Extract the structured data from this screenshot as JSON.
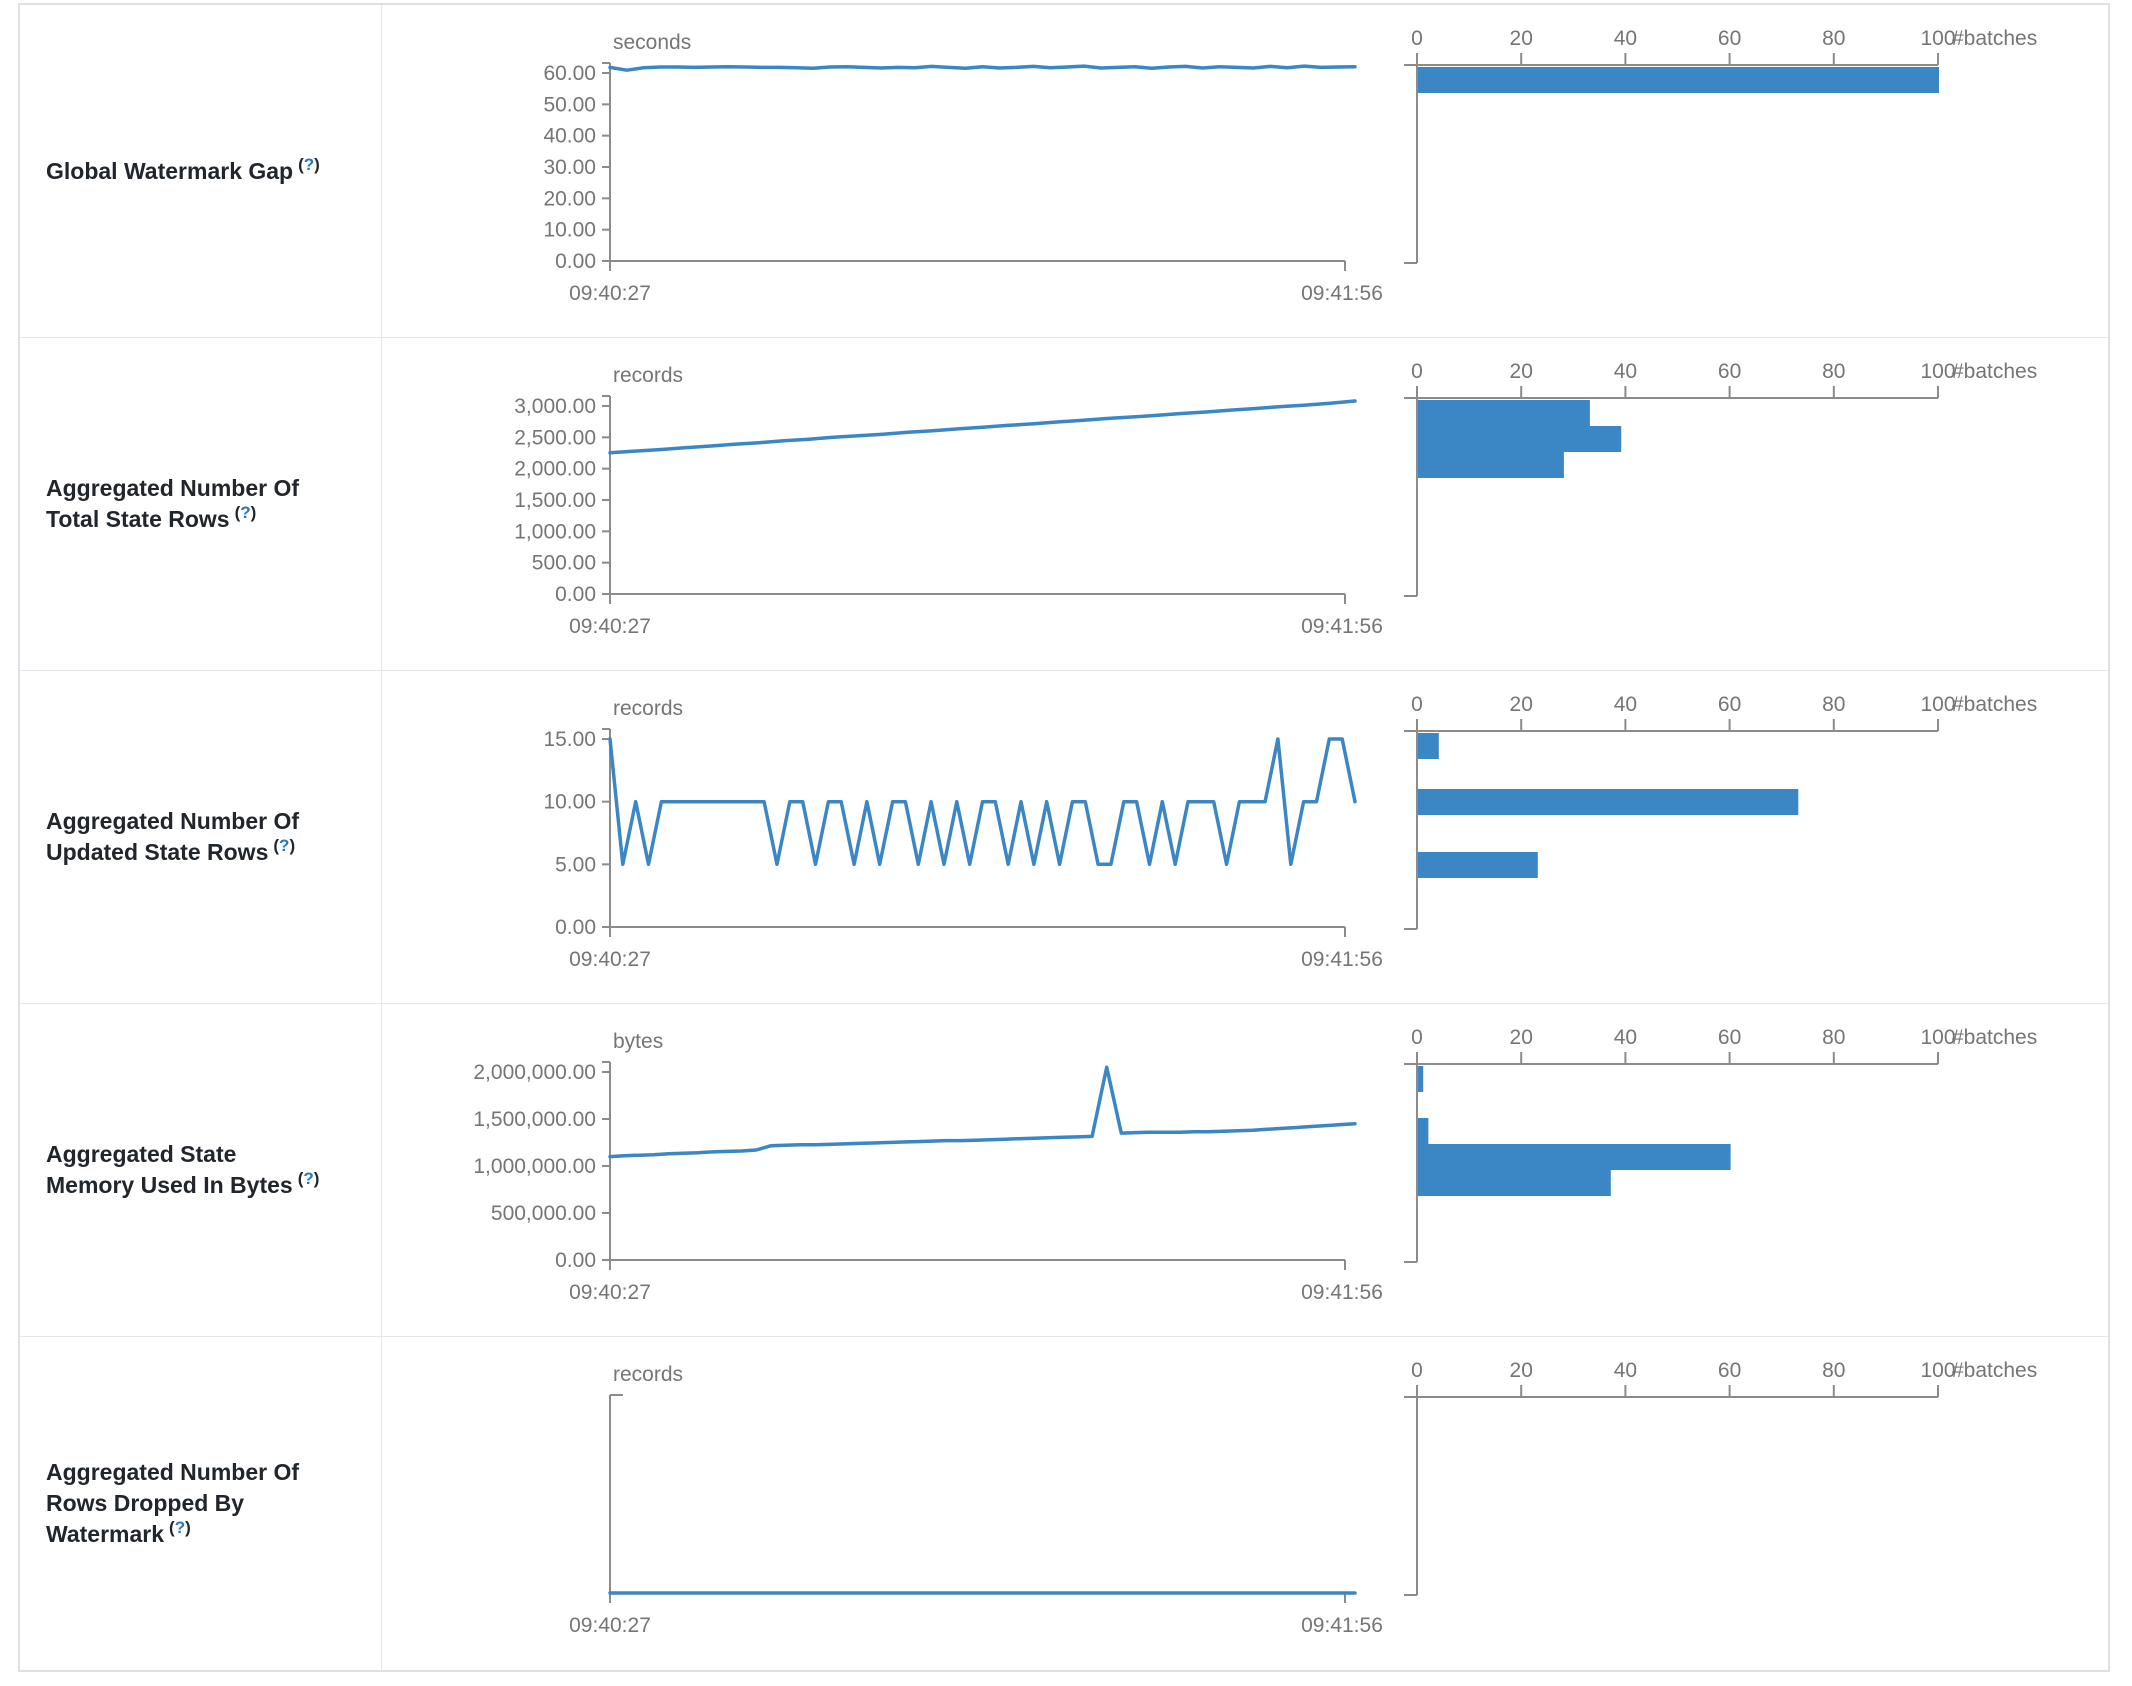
{
  "help": {
    "open": "(",
    "q": "?",
    "close": ")"
  },
  "x_axis": {
    "start": "09:40:27",
    "end": "09:41:56"
  },
  "hist_axis": {
    "ticks": [
      "0",
      "20",
      "40",
      "60",
      "80",
      "100"
    ],
    "label": "#batches"
  },
  "colors": {
    "blue": "#3b86c5",
    "axis": "#8b8b8b",
    "tick_text": "#757575",
    "border": "#dde1e6",
    "help_blue": "#2878b8",
    "label_text": "#21262c"
  },
  "chart_data": [
    {
      "type": "line",
      "title": "Global Watermark Gap",
      "ylabel": "seconds",
      "x_range": [
        "09:40:27",
        "09:41:56"
      ],
      "ylim": [
        0,
        60
      ],
      "hist_x_range": [
        0,
        100
      ],
      "hist": [
        {
          "bucket": "~60s",
          "batches": 100
        }
      ]
    },
    {
      "type": "line",
      "title": "Aggregated Number Of Total State Rows",
      "ylabel": "records",
      "x_range": [
        "09:40:27",
        "09:41:56"
      ],
      "ylim": [
        0,
        3000
      ],
      "hist_x_range": [
        0,
        100
      ],
      "hist": [
        {
          "bucket": "high",
          "batches": 33
        },
        {
          "bucket": "mid",
          "batches": 39
        },
        {
          "bucket": "low",
          "batches": 28
        }
      ]
    },
    {
      "type": "line",
      "title": "Aggregated Number Of Updated State Rows",
      "ylabel": "records",
      "x_range": [
        "09:40:27",
        "09:41:56"
      ],
      "ylim": [
        0,
        15
      ],
      "hist_x_range": [
        0,
        100
      ],
      "hist": [
        {
          "bucket": "15",
          "batches": 4
        },
        {
          "bucket": "10",
          "batches": 73
        },
        {
          "bucket": "5",
          "batches": 23
        }
      ]
    },
    {
      "type": "line",
      "title": "Aggregated State Memory Used In Bytes",
      "ylabel": "bytes",
      "x_range": [
        "09:40:27",
        "09:41:56"
      ],
      "ylim": [
        0,
        2000000
      ],
      "hist_x_range": [
        0,
        100
      ],
      "hist": [
        {
          "bucket": "2.0M",
          "batches": 1
        },
        {
          "bucket": "1.6M",
          "batches": 2
        },
        {
          "bucket": "1.4M",
          "batches": 60
        },
        {
          "bucket": "1.2M",
          "batches": 37
        }
      ]
    },
    {
      "type": "line",
      "title": "Aggregated Number Of Rows Dropped By Watermark",
      "ylabel": "records",
      "x_range": [
        "09:40:27",
        "09:41:56"
      ],
      "ylim": [
        0,
        0
      ],
      "hist_x_range": [
        0,
        100
      ],
      "hist": []
    }
  ],
  "rows": [
    {
      "label": "Global Watermark Gap",
      "unit": "seconds",
      "ymax_tick": 60,
      "yticks": [
        {
          "v": 60,
          "t": "60.00"
        },
        {
          "v": 50,
          "t": "50.00"
        },
        {
          "v": 40,
          "t": "40.00"
        },
        {
          "v": 30,
          "t": "30.00"
        },
        {
          "v": 20,
          "t": "20.00"
        },
        {
          "v": 10,
          "t": "10.00"
        },
        {
          "v": 0,
          "t": "0.00"
        }
      ],
      "values": [
        61.8,
        60.9,
        61.7,
        61.9,
        61.9,
        61.8,
        61.9,
        62.0,
        61.9,
        61.8,
        61.8,
        61.7,
        61.5,
        61.9,
        62.0,
        61.8,
        61.6,
        61.8,
        61.7,
        62.1,
        61.8,
        61.5,
        62.0,
        61.6,
        61.8,
        62.1,
        61.7,
        61.9,
        62.2,
        61.6,
        61.8,
        62.0,
        61.5,
        61.9,
        62.1,
        61.6,
        62.0,
        61.8,
        61.6,
        62.1,
        61.7,
        62.2,
        61.8,
        61.9,
        62.0
      ],
      "bars": [
        {
          "value": 100,
          "y": 62
        }
      ]
    },
    {
      "label": "Aggregated Number Of Total State Rows",
      "unit": "records",
      "ymax_tick": 3000,
      "yticks": [
        {
          "v": 3000,
          "t": "3,000.00"
        },
        {
          "v": 2500,
          "t": "2,500.00"
        },
        {
          "v": 2000,
          "t": "2,000.00"
        },
        {
          "v": 1500,
          "t": "1,500.00"
        },
        {
          "v": 1000,
          "t": "1,000.00"
        },
        {
          "v": 500,
          "t": "500.00"
        },
        {
          "v": 0,
          "t": "0.00"
        }
      ],
      "values": [
        2255,
        2280,
        2305,
        2335,
        2360,
        2390,
        2415,
        2445,
        2470,
        2500,
        2525,
        2550,
        2580,
        2605,
        2635,
        2660,
        2690,
        2715,
        2745,
        2770,
        2800,
        2825,
        2850,
        2880,
        2905,
        2935,
        2960,
        2990,
        3015,
        3045,
        3080
      ],
      "bars": [
        {
          "value": 33,
          "y": 62
        },
        {
          "value": 39,
          "y": 88
        },
        {
          "value": 28,
          "y": 114
        }
      ]
    },
    {
      "label": "Aggregated Number Of Updated State Rows",
      "unit": "records",
      "ymax_tick": 15,
      "yticks": [
        {
          "v": 15,
          "t": "15.00"
        },
        {
          "v": 10,
          "t": "10.00"
        },
        {
          "v": 5,
          "t": "5.00"
        },
        {
          "v": 0,
          "t": "0.00"
        }
      ],
      "values": [
        15,
        5,
        10,
        5,
        10,
        10,
        10,
        10,
        10,
        10,
        10,
        10,
        10,
        5,
        10,
        10,
        5,
        10,
        10,
        5,
        10,
        5,
        10,
        10,
        5,
        10,
        5,
        10,
        5,
        10,
        10,
        5,
        10,
        5,
        10,
        5,
        10,
        10,
        5,
        5,
        10,
        10,
        5,
        10,
        5,
        10,
        10,
        10,
        5,
        10,
        10,
        10,
        15,
        5,
        10,
        10,
        15,
        15,
        10
      ],
      "bars": [
        {
          "value": 4,
          "y": 62
        },
        {
          "value": 73,
          "y": 118
        },
        {
          "value": 23,
          "y": 181
        }
      ]
    },
    {
      "label": "Aggregated State Memory Used In Bytes",
      "unit": "bytes",
      "ymax_tick": 2000000,
      "yticks": [
        {
          "v": 2000000,
          "t": "2,000,000.00"
        },
        {
          "v": 1500000,
          "t": "1,500,000.00"
        },
        {
          "v": 1000000,
          "t": "1,000,000.00"
        },
        {
          "v": 500000,
          "t": "500,000.00"
        },
        {
          "v": 0,
          "t": "0.00"
        }
      ],
      "values": [
        1100000,
        1110000,
        1115000,
        1120000,
        1130000,
        1135000,
        1140000,
        1150000,
        1155000,
        1160000,
        1170000,
        1215000,
        1220000,
        1225000,
        1225000,
        1230000,
        1235000,
        1240000,
        1245000,
        1250000,
        1255000,
        1260000,
        1265000,
        1270000,
        1270000,
        1275000,
        1280000,
        1285000,
        1290000,
        1295000,
        1300000,
        1305000,
        1310000,
        1315000,
        2050000,
        1350000,
        1355000,
        1360000,
        1360000,
        1360000,
        1365000,
        1365000,
        1370000,
        1375000,
        1380000,
        1390000,
        1400000,
        1410000,
        1420000,
        1430000,
        1440000,
        1450000
      ],
      "bars": [
        {
          "value": 1,
          "y": 62
        },
        {
          "value": 2,
          "y": 114
        },
        {
          "value": 60,
          "y": 140
        },
        {
          "value": 37,
          "y": 166
        }
      ]
    },
    {
      "label": "Aggregated Number Of Rows Dropped By Watermark",
      "unit": "records",
      "ymax_tick": 0,
      "yticks": [],
      "values": [
        0,
        0
      ],
      "bars": []
    }
  ]
}
